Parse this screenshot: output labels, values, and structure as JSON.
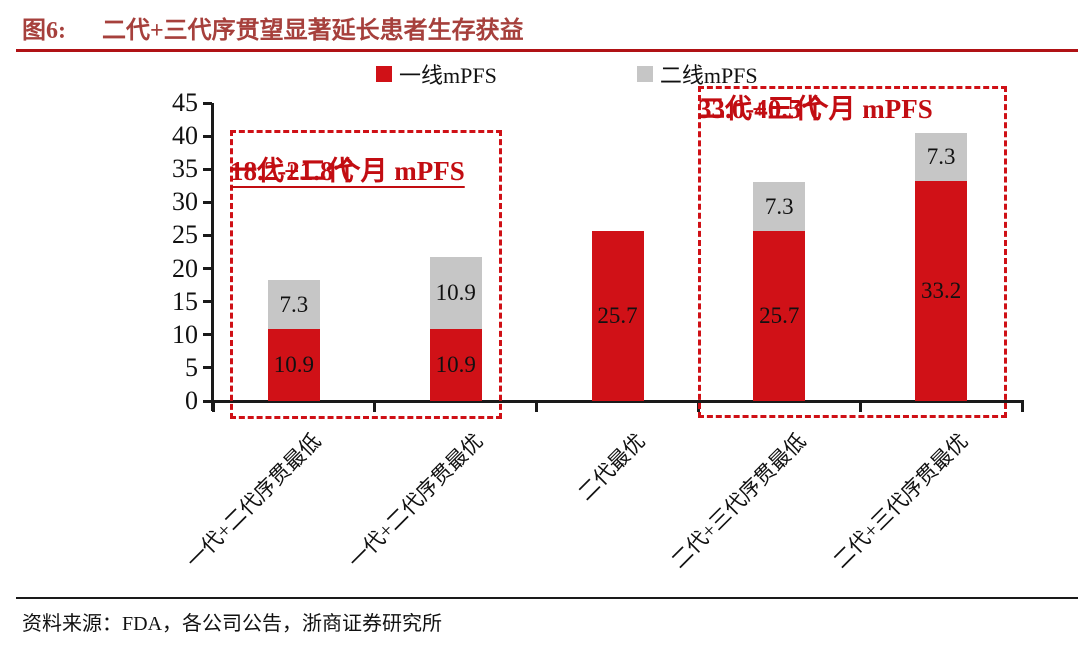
{
  "header": {
    "figure_label": "图6:",
    "title": "二代+三代序贯望显著延长患者生存获益",
    "title_color": "#a6403c",
    "rule_color": "#b01215"
  },
  "chart_data": {
    "type": "bar",
    "stacked": true,
    "categories": [
      "一代+二代序贯最低",
      "一代+二代序贯最优",
      "二代最优",
      "二代+三代序贯最低",
      "二代+三代序贯最优"
    ],
    "series": [
      {
        "name": "一线mPFS",
        "color": "#d01117",
        "values": [
          10.9,
          10.9,
          25.7,
          25.7,
          33.2
        ]
      },
      {
        "name": "二线mPFS",
        "color": "#c6c6c6",
        "values": [
          7.3,
          10.9,
          0,
          7.3,
          7.3
        ]
      }
    ],
    "stack_totals": [
      18.2,
      21.8,
      25.7,
      33.0,
      40.5
    ],
    "ylim": [
      0,
      45
    ],
    "ytick_step": 5,
    "grid": false,
    "legend_position": "top-center",
    "bar_value_labels": true,
    "axis_color": "#1a1a1a",
    "highlight_box_color": "#cf1016",
    "annotations": [
      {
        "lines": [
          "一代+二代",
          "18.2-21.8个月 mPFS"
        ],
        "span_categories": [
          0,
          1
        ],
        "underline": true,
        "color": "#c20d12"
      },
      {
        "lines": [
          "二代+三代",
          "33.0-40.5个月 mPFS"
        ],
        "span_categories": [
          3,
          4
        ],
        "underline": false,
        "color": "#c20d12"
      }
    ]
  },
  "footer": {
    "source": "资料来源：FDA，各公司公告，浙商证券研究所",
    "rule_color": "#1a1a1a"
  }
}
